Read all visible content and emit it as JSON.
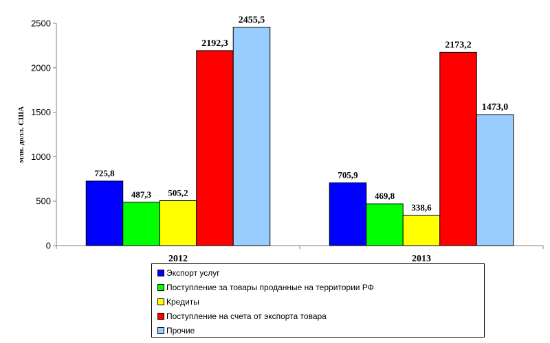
{
  "chart_data": {
    "type": "bar",
    "categories": [
      "2012",
      "2013"
    ],
    "ylabel": "млн. долл. США",
    "ylim": [
      0,
      2500
    ],
    "yticks": [
      0,
      500,
      1000,
      1500,
      2000,
      2500
    ],
    "grid": false,
    "legend_position": "bottom",
    "series": [
      {
        "name": "Экспорт услуг",
        "color": "#0000ff",
        "values": [
          725.8,
          705.9
        ],
        "labels": [
          "725,8",
          "705,9"
        ]
      },
      {
        "name": "Поступление за товары проданные на территории РФ",
        "color": "#00ff00",
        "values": [
          487.3,
          469.8
        ],
        "labels": [
          "487,3",
          "469,8"
        ]
      },
      {
        "name": "Кредиты",
        "color": "#ffff00",
        "values": [
          505.2,
          338.6
        ],
        "labels": [
          "505,2",
          "338,6"
        ]
      },
      {
        "name": "Поступление на счета от экспорта товара",
        "color": "#ff0000",
        "values": [
          2192.3,
          2173.2
        ],
        "labels": [
          "2192,3",
          "2173,2"
        ]
      },
      {
        "name": "Прочие",
        "color": "#99ccff",
        "values": [
          2455.5,
          1473.0
        ],
        "labels": [
          "2455,5",
          "1473,0"
        ]
      }
    ]
  }
}
